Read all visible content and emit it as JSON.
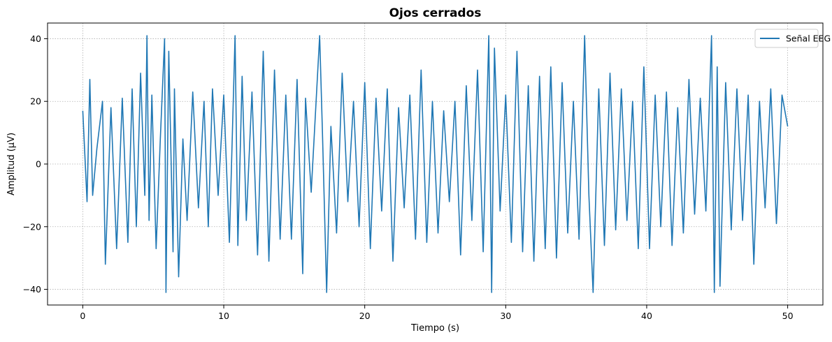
{
  "chart_data": {
    "type": "line",
    "title": "Ojos cerrados",
    "xlabel": "Tiempo (s)",
    "ylabel": "Amplitud (µV)",
    "xlim": [
      -2.5,
      52.5
    ],
    "ylim": [
      -45,
      45
    ],
    "xticks": [
      0,
      10,
      20,
      30,
      40,
      50
    ],
    "xtick_labels": [
      "0",
      "10",
      "20",
      "30",
      "40",
      "50"
    ],
    "yticks": [
      -40,
      -20,
      0,
      20,
      40
    ],
    "ytick_labels": [
      "−40",
      "−20",
      "0",
      "20",
      "40"
    ],
    "grid": true,
    "grid_style": "dotted",
    "legend_position": "top-right",
    "series": [
      {
        "name": "Señal EEG",
        "color": "#1f77b4",
        "x": [
          0,
          0.3,
          0.5,
          0.7,
          1.0,
          1.4,
          1.6,
          2.0,
          2.4,
          2.8,
          3.2,
          3.5,
          3.8,
          4.1,
          4.4,
          4.55,
          4.7,
          4.9,
          5.2,
          5.5,
          5.8,
          5.9,
          6.1,
          6.4,
          6.5,
          6.8,
          7.1,
          7.4,
          7.8,
          8.2,
          8.6,
          8.9,
          9.2,
          9.6,
          10.0,
          10.4,
          10.8,
          11.0,
          11.3,
          11.6,
          12.0,
          12.4,
          12.8,
          13.2,
          13.6,
          14.0,
          14.4,
          14.8,
          15.2,
          15.6,
          15.8,
          16.2,
          16.8,
          17.0,
          17.3,
          17.6,
          18.0,
          18.4,
          18.8,
          19.2,
          19.6,
          20.0,
          20.4,
          20.8,
          21.2,
          21.6,
          22.0,
          22.4,
          22.8,
          23.2,
          23.6,
          24.0,
          24.4,
          24.8,
          25.2,
          25.6,
          26.0,
          26.4,
          26.8,
          27.2,
          27.6,
          28.0,
          28.4,
          28.8,
          29.0,
          29.2,
          29.6,
          30.0,
          30.4,
          30.8,
          31.2,
          31.6,
          32.0,
          32.4,
          32.8,
          33.2,
          33.6,
          34.0,
          34.4,
          34.8,
          35.2,
          35.6,
          35.9,
          36.2,
          36.6,
          37.0,
          37.4,
          37.8,
          38.2,
          38.6,
          39.0,
          39.4,
          39.8,
          40.2,
          40.6,
          41.0,
          41.4,
          41.8,
          42.2,
          42.6,
          43.0,
          43.4,
          43.8,
          44.2,
          44.6,
          44.8,
          45.0,
          45.2,
          45.6,
          46.0,
          46.4,
          46.8,
          47.2,
          47.6,
          48.0,
          48.4,
          48.8,
          49.2,
          49.6,
          50.0
        ],
        "y": [
          17,
          -12,
          27,
          -10,
          5,
          20,
          -32,
          18,
          -27,
          21,
          -25,
          24,
          -20,
          29,
          -10,
          41,
          -18,
          22,
          -27,
          8,
          40,
          -41,
          36,
          -28,
          24,
          -36,
          8,
          -18,
          23,
          -14,
          20,
          -20,
          24,
          -10,
          22,
          -25,
          41,
          -26,
          28,
          -18,
          23,
          -29,
          36,
          -31,
          30,
          -24,
          22,
          -24,
          27,
          -35,
          21,
          -9,
          41,
          10,
          -41,
          12,
          -22,
          29,
          -12,
          20,
          -20,
          26,
          -27,
          21,
          -15,
          24,
          -31,
          18,
          -14,
          22,
          -24,
          30,
          -25,
          20,
          -22,
          17,
          -12,
          20,
          -29,
          25,
          -18,
          30,
          -28,
          41,
          -41,
          37,
          -15,
          22,
          -25,
          36,
          -28,
          25,
          -31,
          28,
          -27,
          31,
          -30,
          26,
          -22,
          20,
          -24,
          41,
          -10,
          -41,
          24,
          -26,
          29,
          -21,
          24,
          -18,
          20,
          -27,
          31,
          -27,
          22,
          -20,
          23,
          -26,
          18,
          -22,
          27,
          -16,
          21,
          -15,
          41,
          -41,
          31,
          -39,
          26,
          -21,
          24,
          -18,
          22,
          -32,
          20,
          -14,
          24,
          -19,
          22,
          12
        ]
      }
    ]
  }
}
